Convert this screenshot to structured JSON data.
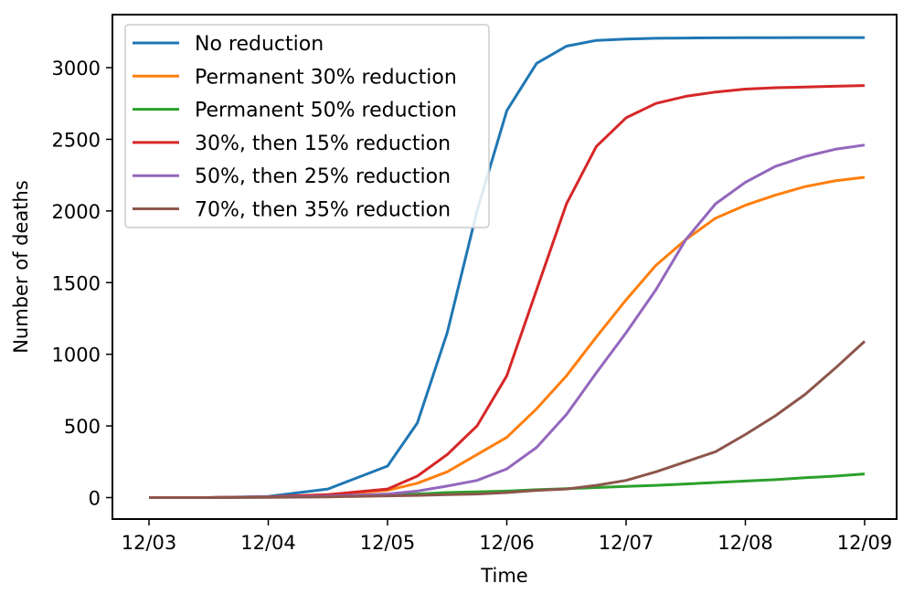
{
  "chart_data": {
    "type": "line",
    "xlabel": "Time",
    "ylabel": "Number of deaths",
    "x_ticks": [
      "12/03",
      "12/04",
      "12/05",
      "12/06",
      "12/07",
      "12/08",
      "12/09"
    ],
    "y_ticks": [
      0,
      500,
      1000,
      1500,
      2000,
      2500,
      3000
    ],
    "xlim": [
      0,
      6
    ],
    "ylim": [
      -150,
      3370
    ],
    "legend_position": "top-left",
    "grid": false,
    "x": [
      0.0,
      0.5,
      1.0,
      1.5,
      2.0,
      2.25,
      2.5,
      2.75,
      3.0,
      3.25,
      3.5,
      3.75,
      4.0,
      4.25,
      4.5,
      4.75,
      5.0,
      5.25,
      5.5,
      5.75,
      6.0
    ],
    "series": [
      {
        "name": "No reduction",
        "color": "#1f77b4",
        "values": [
          0,
          0,
          8,
          60,
          220,
          520,
          1150,
          2000,
          2700,
          3030,
          3150,
          3190,
          3200,
          3205,
          3207,
          3208,
          3209,
          3209,
          3210,
          3210,
          3210
        ]
      },
      {
        "name": "Permanent 30% reduction",
        "color": "#ff7f0e",
        "values": [
          0,
          0,
          5,
          20,
          50,
          100,
          180,
          300,
          420,
          620,
          850,
          1120,
          1380,
          1620,
          1800,
          1950,
          2040,
          2110,
          2170,
          2210,
          2235
        ]
      },
      {
        "name": "Permanent 50% reduction",
        "color": "#2ca02c",
        "values": [
          0,
          0,
          3,
          10,
          20,
          25,
          35,
          40,
          45,
          55,
          62,
          70,
          78,
          85,
          95,
          105,
          115,
          125,
          138,
          150,
          165
        ]
      },
      {
        "name": "30%, then 15% reduction",
        "color": "#d62728",
        "values": [
          0,
          0,
          5,
          20,
          60,
          150,
          300,
          500,
          850,
          1450,
          2050,
          2450,
          2650,
          2750,
          2800,
          2830,
          2850,
          2860,
          2865,
          2870,
          2875
        ]
      },
      {
        "name": "50%, then 25% reduction",
        "color": "#9467bd",
        "values": [
          0,
          0,
          3,
          10,
          25,
          45,
          80,
          120,
          200,
          350,
          580,
          870,
          1150,
          1450,
          1800,
          2050,
          2200,
          2310,
          2380,
          2430,
          2460
        ]
      },
      {
        "name": "70%, then 35% reduction",
        "color": "#8c564b",
        "values": [
          0,
          0,
          2,
          5,
          12,
          15,
          20,
          25,
          35,
          50,
          60,
          85,
          120,
          180,
          250,
          320,
          440,
          570,
          720,
          900,
          1090
        ]
      }
    ]
  }
}
